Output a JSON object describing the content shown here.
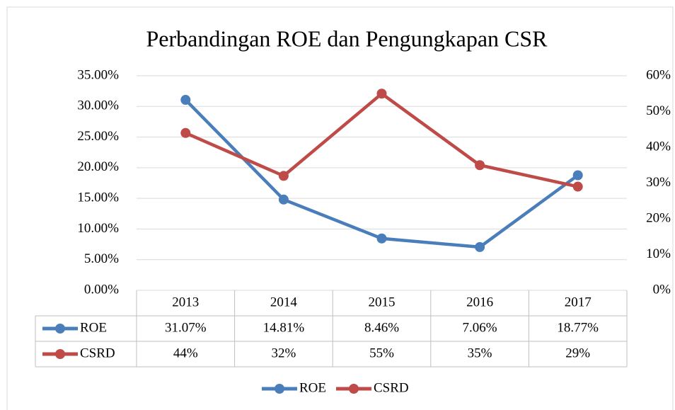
{
  "chart_data": {
    "type": "line",
    "title": "Perbandingan ROE dan Pengungkapan CSR",
    "categories": [
      "2013",
      "2014",
      "2015",
      "2016",
      "2017"
    ],
    "series": [
      {
        "name": "ROE",
        "color": "#4a7ebb",
        "values": [
          31.07,
          14.81,
          8.46,
          7.06,
          18.77
        ],
        "value_labels": [
          "31.07%",
          "14.81%",
          "8.46%",
          "7.06%",
          "18.77%"
        ]
      },
      {
        "name": "CSRD",
        "color": "#be4b48",
        "axis": "y2",
        "values": [
          44,
          32,
          55,
          35,
          29
        ],
        "value_labels": [
          "44%",
          "32%",
          "55%",
          "35%",
          "29%"
        ]
      }
    ],
    "ylim": [
      0,
      35
    ],
    "yticks": [
      {
        "value": 0,
        "label": "0.00%"
      },
      {
        "value": 5,
        "label": "5.00%"
      },
      {
        "value": 10,
        "label": "10.00%"
      },
      {
        "value": 15,
        "label": "15.00%"
      },
      {
        "value": 20,
        "label": "20.00%"
      },
      {
        "value": 25,
        "label": "25.00%"
      },
      {
        "value": 30,
        "label": "30.00%"
      },
      {
        "value": 35,
        "label": "35.00%"
      }
    ],
    "y2lim": [
      0,
      60
    ],
    "y2ticks": [
      {
        "value": 0,
        "label": "0%"
      },
      {
        "value": 10,
        "label": "10%"
      },
      {
        "value": 20,
        "label": "20%"
      },
      {
        "value": 30,
        "label": "30%"
      },
      {
        "value": 40,
        "label": "40%"
      },
      {
        "value": 50,
        "label": "50%"
      },
      {
        "value": 60,
        "label": "60%"
      }
    ],
    "grid": true,
    "legend": "bottom",
    "data_table": true
  }
}
